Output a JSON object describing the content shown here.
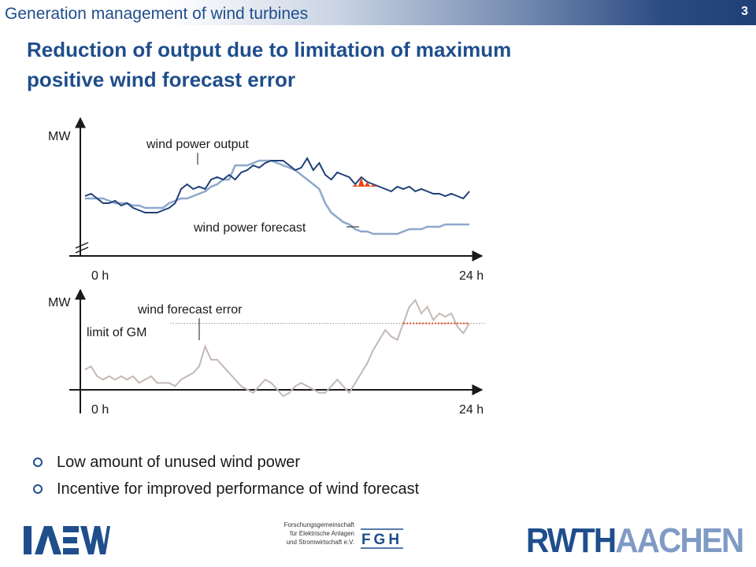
{
  "header": {
    "title": "Generation management of wind turbines",
    "slide_number": "3"
  },
  "slide": {
    "title_line1": "Reduction of output due to limitation of maximum",
    "title_line2": "positive wind forecast error"
  },
  "chart_data": [
    {
      "type": "line",
      "ylabel": "MW",
      "x_start_label": "0 h",
      "x_end_label": "24 h",
      "series": [
        {
          "name": "wind power output",
          "color": "#1f3f78",
          "values": [
            17,
            18,
            16,
            14,
            14,
            15,
            13,
            14,
            12,
            11,
            10,
            10,
            10,
            11,
            12,
            14,
            20,
            22,
            20,
            21,
            20,
            24,
            25,
            24,
            26,
            24,
            27,
            28,
            30,
            29,
            31,
            32,
            32,
            32,
            30,
            28,
            29,
            33,
            28,
            31,
            26,
            24,
            27,
            26,
            25,
            22,
            25,
            23,
            22,
            21,
            20,
            19,
            21,
            20,
            21,
            19,
            20,
            19,
            18,
            18,
            17,
            18,
            17,
            16,
            19
          ]
        },
        {
          "name": "wind power forecast",
          "color": "#8ca8cc",
          "values": [
            16,
            16,
            16,
            16,
            15,
            14,
            14,
            14,
            13,
            13,
            12,
            12,
            12,
            12,
            14,
            15,
            16,
            16,
            17,
            18,
            19,
            21,
            22,
            24,
            24,
            30,
            30,
            30,
            31,
            32,
            32,
            32,
            31,
            30,
            29,
            28,
            26,
            24,
            22,
            20,
            14,
            10,
            8,
            6,
            5,
            3,
            2,
            2,
            1,
            1,
            1,
            1,
            1,
            2,
            3,
            3,
            3,
            4,
            4,
            4,
            5,
            5,
            5,
            5,
            5
          ]
        }
      ],
      "annotations": [
        "wind power output",
        "wind power forecast"
      ]
    },
    {
      "type": "line",
      "ylabel": "MW",
      "x_start_label": "0 h",
      "x_end_label": "24 h",
      "series": [
        {
          "name": "wind forecast error",
          "color": "#c4b8b4",
          "values": [
            3,
            4,
            1,
            0,
            1,
            0,
            1,
            0,
            1,
            -1,
            0,
            1,
            -1,
            -1,
            -1,
            -2,
            0,
            1,
            2,
            4,
            10,
            6,
            6,
            4,
            2,
            0,
            -2,
            -3,
            -4,
            -2,
            0,
            -1,
            -3,
            -5,
            -4,
            -2,
            -1,
            -2,
            -3,
            -4,
            -4,
            -2,
            0,
            -2,
            -4,
            -1,
            2,
            5,
            9,
            12,
            15,
            13,
            12,
            17,
            22,
            24,
            20,
            22,
            18,
            20,
            19,
            20,
            16,
            14,
            17
          ]
        }
      ],
      "limit_label": "limit of GM",
      "limit_value": 17,
      "annotations": [
        "wind forecast error",
        "limit of GM"
      ]
    }
  ],
  "bullets": [
    "Low amount of unused wind power",
    "Incentive for improved performance of wind forecast"
  ],
  "footer": {
    "logo_left_text": "IAEW",
    "fgh_line1": "Forschungsgemeinschaft",
    "fgh_line2": "für Elektrische Anlagen",
    "fgh_line3": "und Stromwirtschaft e.V.",
    "fgh_logo_text": "FGH",
    "logo_right_part1": "RWTH",
    "logo_right_part2": "AACHEN"
  },
  "colors": {
    "accent": "#1f4e8c",
    "output": "#1f3f78",
    "forecast": "#8ca8cc",
    "error": "#c4b8b4",
    "cut": "#e8491e"
  }
}
